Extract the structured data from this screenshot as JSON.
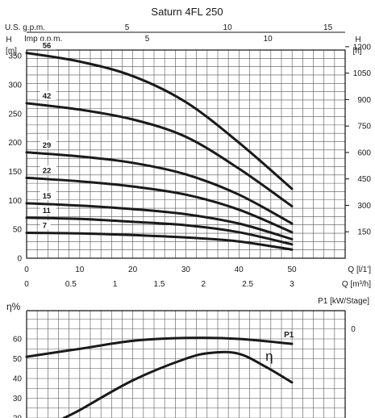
{
  "title": "Saturn 4FL 250",
  "top_axis_usgpm": {
    "label": "U.S. g.p.m.",
    "ticks": [
      "5",
      "10",
      "15"
    ],
    "values": [
      5,
      10,
      15
    ]
  },
  "top_axis_impgpm": {
    "label": "Imp g.p.m.",
    "ticks": [
      "5",
      "10"
    ],
    "values": [
      5,
      10
    ]
  },
  "chart_data": [
    {
      "type": "line",
      "title": "Saturn 4FL 250",
      "xlabel": "Q [l/1']",
      "ylabel": "H [m]",
      "ylabel_right": "H [ft]",
      "xlim": [
        0,
        50
      ],
      "ylim": [
        0,
        360
      ],
      "x_ticks": [
        0,
        10,
        20,
        30,
        40,
        50
      ],
      "x_tick_labels": [
        "0",
        "10",
        "20",
        "30",
        "40",
        "50"
      ],
      "x2_label": "Q [m³/h]",
      "x2_ticks": [
        0,
        0.5,
        1,
        1.5,
        2,
        2.5,
        3
      ],
      "x2_tick_labels": [
        "0",
        "0.5",
        "1",
        "1.5",
        "2",
        "2.5",
        "3"
      ],
      "y_ticks": [
        0,
        50,
        100,
        150,
        200,
        250,
        300,
        350
      ],
      "y_tick_labels": [
        "0",
        "50",
        "100",
        "150",
        "200",
        "250",
        "300",
        "350"
      ],
      "y_right_ticks": [
        150,
        300,
        450,
        600,
        750,
        900,
        1050,
        1200
      ],
      "y_right_tick_labels": [
        "150",
        "300",
        "450",
        "600",
        "750",
        "900",
        "1050",
        "1200"
      ],
      "grid": true,
      "series": [
        {
          "name": "56",
          "x": [
            0,
            10,
            20,
            30,
            40,
            50
          ],
          "values": [
            355,
            340,
            315,
            270,
            200,
            120
          ]
        },
        {
          "name": "42",
          "x": [
            0,
            10,
            20,
            30,
            40,
            50
          ],
          "values": [
            268,
            257,
            240,
            210,
            155,
            90
          ]
        },
        {
          "name": "29",
          "x": [
            0,
            10,
            20,
            30,
            40,
            50
          ],
          "values": [
            183,
            176,
            165,
            145,
            110,
            60
          ]
        },
        {
          "name": "22",
          "x": [
            0,
            10,
            20,
            30,
            40,
            50
          ],
          "values": [
            139,
            133,
            124,
            110,
            84,
            45
          ]
        },
        {
          "name": "15",
          "x": [
            0,
            10,
            20,
            30,
            40,
            50
          ],
          "values": [
            95,
            91,
            85,
            76,
            60,
            33
          ]
        },
        {
          "name": "11",
          "x": [
            0,
            10,
            20,
            30,
            40,
            50
          ],
          "values": [
            70,
            68,
            63,
            57,
            45,
            24
          ]
        },
        {
          "name": "7",
          "x": [
            0,
            10,
            20,
            30,
            40,
            50
          ],
          "values": [
            44,
            43,
            40,
            36,
            29,
            15
          ]
        }
      ]
    },
    {
      "type": "line",
      "ylabel": "η%",
      "ylabel_right": "P1 [kW/Stage]",
      "xlim": [
        0,
        50
      ],
      "ylim": [
        20,
        70
      ],
      "y_ticks": [
        20,
        30,
        40,
        50,
        60
      ],
      "y_tick_labels": [
        "20",
        "30",
        "40",
        "50",
        "60"
      ],
      "y_right_ticks": [
        0
      ],
      "y_right_tick_labels": [
        "0"
      ],
      "grid": true,
      "series": [
        {
          "name": "P1",
          "x": [
            0,
            10,
            20,
            30,
            40,
            50
          ],
          "values": [
            51,
            55,
            59,
            60.5,
            60,
            57.5
          ]
        },
        {
          "name": "η",
          "x": [
            7,
            10,
            20,
            30,
            35,
            40,
            45,
            50
          ],
          "values": [
            20,
            24,
            39,
            50,
            53,
            52.5,
            46,
            38
          ]
        }
      ]
    }
  ]
}
